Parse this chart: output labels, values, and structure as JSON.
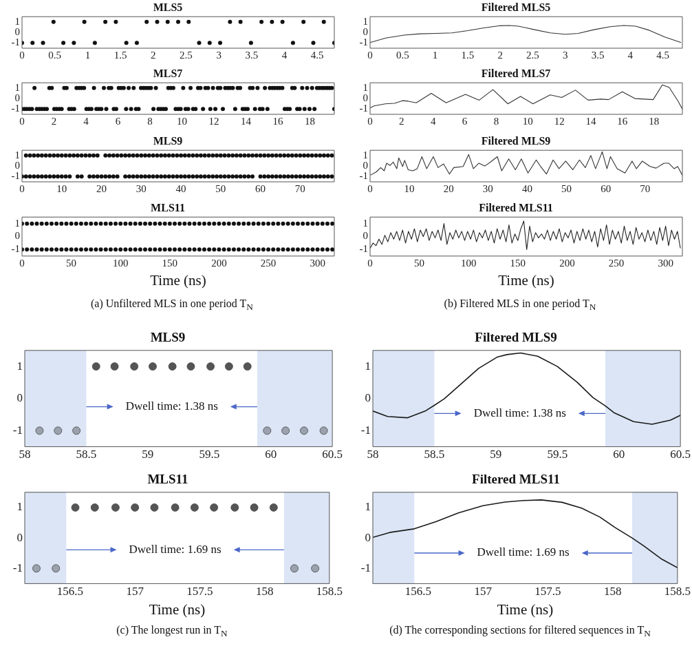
{
  "chart_data": [
    {
      "type": "scatter",
      "title": "MLS5",
      "xlim": [
        0,
        4.76
      ],
      "xticks": [
        0,
        0.5,
        1,
        1.5,
        2,
        2.5,
        3,
        3.5,
        4,
        4.5
      ],
      "ylim": [
        -1.5,
        1.5
      ],
      "yticks": [
        -1,
        0,
        1
      ],
      "marker": "circle",
      "series": [
        {
          "color": "#111111",
          "x": [
            0,
            0.16,
            0.32,
            0.48,
            0.63,
            0.79,
            0.95,
            1.11,
            1.27,
            1.43,
            1.59,
            1.75,
            1.9,
            2.06,
            2.22,
            2.38,
            2.54,
            2.7,
            2.86,
            3.02,
            3.17,
            3.33,
            3.49,
            3.65,
            3.81,
            3.97,
            4.13,
            4.29,
            4.44,
            4.6,
            4.76
          ],
          "values": [
            -1,
            -1,
            -1,
            1,
            -1,
            -1,
            1,
            -1,
            1,
            1,
            -1,
            -1,
            1,
            1,
            1,
            1,
            1,
            -1,
            -1,
            -1,
            1,
            1,
            -1,
            1,
            1,
            1,
            -1,
            1,
            -1,
            1,
            -1
          ]
        }
      ]
    },
    {
      "type": "line",
      "title": "Filtered MLS5",
      "xlim": [
        0,
        4.8
      ],
      "xticks": [
        0,
        0.5,
        1,
        1.5,
        2,
        2.5,
        3,
        3.5,
        4,
        4.5
      ],
      "ylim": [
        -1.5,
        1.5
      ],
      "yticks": [
        -1,
        0,
        1
      ],
      "marker": "none",
      "series": [
        {
          "color": "#333333",
          "x": [
            0,
            0.24,
            0.52,
            0.76,
            1.01,
            1.26,
            1.5,
            1.75,
            2.0,
            2.14,
            2.28,
            2.53,
            2.77,
            3.0,
            3.2,
            3.44,
            3.69,
            3.9,
            4.08,
            4.29,
            4.53,
            4.78
          ],
          "values": [
            -0.96,
            -0.53,
            -0.26,
            -0.13,
            -0.09,
            -0.04,
            0.17,
            0.43,
            0.64,
            0.66,
            0.6,
            0.26,
            -0.04,
            -0.17,
            -0.09,
            0.26,
            0.55,
            0.66,
            0.6,
            0.21,
            -0.43,
            -0.96
          ]
        }
      ]
    },
    {
      "type": "scatter",
      "title": "MLS7",
      "xlim": [
        0,
        19.53
      ],
      "xticks": [
        0,
        2,
        4,
        6,
        8,
        10,
        12,
        14,
        16,
        18
      ],
      "ylim": [
        -1.5,
        1.5
      ],
      "yticks": [
        -1,
        0,
        1
      ],
      "marker": "circle",
      "series": [
        {
          "color": "#111111",
          "x": [
            0,
            0.16,
            0.31,
            0.47,
            0.62,
            0.78,
            0.93,
            1.09,
            1.24,
            1.4,
            1.55,
            1.71,
            1.86,
            2.02,
            2.17,
            2.33,
            2.48,
            2.64,
            2.79,
            2.95,
            3.1,
            3.26,
            3.41,
            3.57,
            3.72,
            3.88,
            4.03,
            4.19,
            4.34,
            4.5,
            4.65,
            4.81,
            4.96,
            5.12,
            5.27,
            5.43,
            5.58,
            5.74,
            5.89,
            6.05,
            6.2,
            6.36,
            6.51,
            6.67,
            6.82,
            6.98,
            7.13,
            7.29,
            7.44,
            7.6,
            7.75,
            7.91,
            8.06,
            8.22,
            8.37,
            8.53,
            8.68,
            8.84,
            8.99,
            9.15,
            9.3,
            9.46,
            9.61,
            9.77,
            9.92,
            10.08,
            10.23,
            10.39,
            10.54,
            10.7,
            10.85,
            11.01,
            11.16,
            11.32,
            11.47,
            11.63,
            11.78,
            11.94,
            12.09,
            12.25,
            12.4,
            12.56,
            12.71,
            12.87,
            13.02,
            13.18,
            13.33,
            13.49,
            13.64,
            13.8,
            13.95,
            14.11,
            14.26,
            14.42,
            14.57,
            14.73,
            14.88,
            15.04,
            15.19,
            15.35,
            15.5,
            15.66,
            15.81,
            15.97,
            16.12,
            16.28,
            16.43,
            16.59,
            16.74,
            16.9,
            17.05,
            17.21,
            17.36,
            17.52,
            17.67,
            17.83,
            17.98,
            18.14,
            18.29,
            18.45,
            18.6,
            18.76,
            18.91,
            19.07,
            19.22,
            19.38,
            19.53
          ],
          "values": [
            -1,
            -1,
            -1,
            -1,
            -1,
            1,
            -1,
            -1,
            -1,
            -1,
            -1,
            1,
            1,
            -1,
            -1,
            -1,
            -1,
            1,
            1,
            -1,
            -1,
            -1,
            1,
            1,
            1,
            1,
            -1,
            -1,
            -1,
            1,
            -1,
            -1,
            -1,
            1,
            -1,
            1,
            1,
            -1,
            -1,
            1,
            1,
            1,
            -1,
            1,
            -1,
            1,
            -1,
            -1,
            1,
            1,
            1,
            1,
            1,
            -1,
            1,
            -1,
            -1,
            -1,
            -1,
            1,
            1,
            1,
            -1,
            -1,
            -1,
            1,
            -1,
            -1,
            1,
            -1,
            -1,
            1,
            1,
            -1,
            1,
            1,
            -1,
            1,
            -1,
            1,
            1,
            -1,
            1,
            1,
            1,
            1,
            -1,
            1,
            1,
            -1,
            -1,
            -1,
            1,
            1,
            -1,
            1,
            -1,
            -1,
            1,
            -1,
            1,
            1,
            1,
            1,
            1,
            1,
            -1,
            -1,
            -1,
            1,
            1,
            -1,
            -1,
            1,
            -1,
            1,
            -1,
            1,
            -1,
            1,
            1,
            1,
            1,
            1,
            1,
            1,
            -1
          ]
        }
      ]
    },
    {
      "type": "line",
      "title": "Filtered MLS7",
      "xlim": [
        0,
        19.8
      ],
      "xticks": [
        0,
        2,
        4,
        6,
        8,
        10,
        12,
        14,
        16,
        18
      ],
      "ylim": [
        -1.5,
        1.5
      ],
      "yticks": [
        -1,
        0,
        1
      ],
      "marker": "none",
      "series": [
        {
          "color": "#333333",
          "x": [
            0,
            0.25,
            0.97,
            1.55,
            2.06,
            2.42,
            2.93,
            3.88,
            4.82,
            6.05,
            6.92,
            7.79,
            8.74,
            9.54,
            10.33,
            11.42,
            12.15,
            13.02,
            13.82,
            14.62,
            15.12,
            15.99,
            16.79,
            17.95,
            18.53,
            18.97,
            19.55,
            19.8
          ],
          "values": [
            -0.9,
            -0.7,
            -0.5,
            -0.45,
            -0.2,
            -0.25,
            -0.4,
            0.5,
            -0.4,
            0.4,
            -0.15,
            0.85,
            -0.5,
            0.2,
            -0.5,
            0.35,
            0.1,
            0.8,
            -0.15,
            -0.05,
            -0.1,
            0.65,
            0,
            -0.1,
            1.3,
            1.05,
            -0.3,
            -1
          ]
        }
      ]
    },
    {
      "type": "scatter",
      "title": "MLS9",
      "xlim": [
        0,
        78.6
      ],
      "xticks": [
        0,
        10,
        20,
        30,
        40,
        50,
        60,
        70
      ],
      "ylim": [
        -1.5,
        1.5
      ],
      "yticks": [
        -1,
        0,
        1
      ],
      "marker": "circle",
      "series": [
        {
          "color": "#111111",
          "x": [
            1,
            2,
            3,
            4,
            5,
            6,
            7,
            8,
            9,
            10,
            11,
            12,
            13,
            14,
            15,
            16,
            17,
            18,
            19,
            21,
            22,
            23,
            24,
            25,
            26,
            27,
            28,
            29,
            30,
            31,
            32,
            33,
            34,
            35,
            36,
            37,
            38,
            39,
            40,
            41,
            42,
            43,
            44,
            45,
            46,
            47,
            48,
            49,
            50,
            51,
            52,
            53,
            54,
            55,
            56,
            57,
            58,
            59,
            60,
            61,
            62,
            63,
            64,
            65,
            66,
            67,
            68,
            69,
            70,
            71,
            72,
            73,
            74,
            75,
            76,
            77,
            78
          ],
          "values": [
            1,
            1,
            1,
            1,
            1,
            1,
            1,
            1,
            1,
            1,
            1,
            1,
            1,
            1,
            1,
            1,
            1,
            1,
            1,
            1,
            1,
            1,
            1,
            1,
            1,
            1,
            1,
            1,
            1,
            1,
            1,
            1,
            1,
            1,
            1,
            1,
            1,
            1,
            1,
            1,
            1,
            1,
            1,
            1,
            1,
            1,
            1,
            1,
            1,
            1,
            1,
            1,
            1,
            1,
            1,
            1,
            1,
            1,
            1,
            1,
            1,
            1,
            1,
            1,
            1,
            1,
            1,
            1,
            1,
            1,
            1,
            1,
            1,
            1,
            1,
            1,
            1
          ]
        },
        {
          "color": "#111111",
          "x": [
            0,
            1,
            2,
            3,
            4,
            5,
            6,
            7,
            8,
            9,
            10,
            11,
            12,
            14,
            15,
            17,
            18,
            19,
            20,
            21,
            22,
            23,
            24,
            26,
            27,
            28,
            29,
            30,
            31,
            32,
            33,
            34,
            35,
            36,
            37,
            38,
            39,
            40,
            41,
            42,
            43,
            44,
            45,
            46,
            47,
            48,
            49,
            50,
            51,
            52,
            53,
            54,
            55,
            56,
            57,
            58,
            60,
            61,
            62,
            63,
            64,
            65,
            66,
            67,
            68,
            69,
            70,
            71,
            72,
            73,
            74,
            75,
            76,
            77,
            78
          ],
          "values": [
            -1,
            -1,
            -1,
            -1,
            -1,
            -1,
            -1,
            -1,
            -1,
            -1,
            -1,
            -1,
            -1,
            -1,
            -1,
            -1,
            -1,
            -1,
            -1,
            -1,
            -1,
            -1,
            -1,
            -1,
            -1,
            -1,
            -1,
            -1,
            -1,
            -1,
            -1,
            -1,
            -1,
            -1,
            -1,
            -1,
            -1,
            -1,
            -1,
            -1,
            -1,
            -1,
            -1,
            -1,
            -1,
            -1,
            -1,
            -1,
            -1,
            -1,
            -1,
            -1,
            -1,
            -1,
            -1,
            -1,
            -1,
            -1,
            -1,
            -1,
            -1,
            -1,
            -1,
            -1,
            -1,
            -1,
            -1,
            -1,
            -1,
            -1,
            -1,
            -1,
            -1,
            -1,
            -1
          ]
        }
      ]
    },
    {
      "type": "line",
      "title": "Filtered MLS9",
      "xlim": [
        0,
        79.5
      ],
      "xticks": [
        0,
        10,
        20,
        30,
        40,
        50,
        60,
        70
      ],
      "ylim": [
        -1.5,
        1.5
      ],
      "yticks": [
        -1,
        0,
        1
      ],
      "marker": "none",
      "series": [
        {
          "color": "#333333",
          "x": [
            0.1,
            1.6,
            2.7,
            3.6,
            4.2,
            5.1,
            5.9,
            6.8,
            7.3,
            8.3,
            8.8,
            9.7,
            10.9,
            12.0,
            13.2,
            14.4,
            16.1,
            17.3,
            18.7,
            20.2,
            21.3,
            23.7,
            25.1,
            26.3,
            27.7,
            29.2,
            30.6,
            32.4,
            33.5,
            35.3,
            37.0,
            38.5,
            40.2,
            42.3,
            43.4,
            44.9,
            46.6,
            48.1,
            49.8,
            51.6,
            53.3,
            54.8,
            56.2,
            57.4,
            59.1,
            60.3,
            61.2,
            62.9,
            64.9,
            66.7,
            67.8,
            69.3,
            71.3,
            72.8,
            74.8,
            76.0,
            77.4,
            78.3,
            79.5
          ],
          "values": [
            -0.87,
            -0.55,
            -0.15,
            -0.45,
            0.27,
            0.06,
            0.37,
            -0.25,
            0.78,
            -0.04,
            0.54,
            -0.35,
            -0.45,
            -0.25,
            0.89,
            -0.25,
            0.89,
            -0.15,
            0.2,
            -0.76,
            -0.15,
            -0.04,
            1.1,
            -0.25,
            0.27,
            0,
            0.37,
            0.89,
            -0.45,
            0.68,
            -0.35,
            0.68,
            -0.66,
            0.58,
            -0.04,
            -0.76,
            0.58,
            -0.25,
            0.47,
            -0.35,
            0.58,
            -0.15,
            1.0,
            -0.25,
            1.36,
            -0.25,
            0.89,
            -0.25,
            -0.66,
            0.47,
            -0.25,
            0.47,
            -0.04,
            -0.2,
            0.27,
            0.27,
            -0.25,
            -0.04,
            -0.87
          ]
        }
      ]
    },
    {
      "type": "scatter",
      "title": "MLS11",
      "xlabel": "Time (ns)",
      "annotations": [
        "(a)  Unfiltered MLS in one period T$_{N}$"
      ],
      "xlim": [
        0,
        317
      ],
      "xticks": [
        0,
        50,
        100,
        150,
        200,
        250,
        300
      ],
      "ylim": [
        -1.5,
        1.5
      ],
      "yticks": [
        -1,
        0,
        1
      ],
      "marker": "circle",
      "series": [
        {
          "color": "#111111",
          "x": [
            0,
            5,
            10,
            15,
            20,
            25,
            30,
            35,
            40,
            45,
            50,
            55,
            60,
            65,
            70,
            75,
            80,
            85,
            90,
            95,
            100,
            105,
            110,
            115,
            120,
            125,
            130,
            135,
            140,
            145,
            150,
            155,
            160,
            165,
            170,
            175,
            180,
            185,
            190,
            195,
            200,
            205,
            210,
            215,
            220,
            225,
            230,
            235,
            240,
            245,
            250,
            255,
            260,
            265,
            270,
            275,
            280,
            285,
            290,
            295,
            300,
            305,
            310,
            315
          ],
          "values": [
            1,
            1,
            1,
            1,
            1,
            1,
            1,
            1,
            1,
            1,
            1,
            1,
            1,
            1,
            1,
            1,
            1,
            1,
            1,
            1,
            1,
            1,
            1,
            1,
            1,
            1,
            1,
            1,
            1,
            1,
            1,
            1,
            1,
            1,
            1,
            1,
            1,
            1,
            1,
            1,
            1,
            1,
            1,
            1,
            1,
            1,
            1,
            1,
            1,
            1,
            1,
            1,
            1,
            1,
            1,
            1,
            1,
            1,
            1,
            1,
            1,
            1,
            1,
            1
          ]
        },
        {
          "color": "#111111",
          "x": [
            0,
            5,
            10,
            15,
            20,
            25,
            30,
            35,
            40,
            45,
            50,
            55,
            60,
            65,
            70,
            75,
            80,
            85,
            90,
            95,
            100,
            105,
            110,
            115,
            120,
            125,
            130,
            135,
            140,
            145,
            150,
            155,
            160,
            165,
            170,
            175,
            180,
            185,
            190,
            195,
            200,
            205,
            210,
            215,
            220,
            225,
            230,
            235,
            240,
            245,
            250,
            255,
            260,
            265,
            270,
            275,
            280,
            285,
            290,
            295,
            300,
            305,
            310,
            315
          ],
          "values": [
            -1,
            -1,
            -1,
            -1,
            -1,
            -1,
            -1,
            -1,
            -1,
            -1,
            -1,
            -1,
            -1,
            -1,
            -1,
            -1,
            -1,
            -1,
            -1,
            -1,
            -1,
            -1,
            -1,
            -1,
            -1,
            -1,
            -1,
            -1,
            -1,
            -1,
            -1,
            -1,
            -1,
            -1,
            -1,
            -1,
            -1,
            -1,
            -1,
            -1,
            -1,
            -1,
            -1,
            -1,
            -1,
            -1,
            -1,
            -1,
            -1,
            -1,
            -1,
            -1,
            -1,
            -1,
            -1,
            -1,
            -1,
            -1,
            -1,
            -1,
            -1,
            -1,
            -1,
            -1
          ]
        }
      ]
    },
    {
      "type": "line",
      "title": "Filtered MLS11",
      "xlabel": "Time (ns)",
      "annotations": [
        "(b)  Filtered MLS in one period T$_{N}$"
      ],
      "xlim": [
        0,
        317
      ],
      "xticks": [
        0,
        50,
        100,
        150,
        200,
        250,
        300
      ],
      "ylim": [
        -1.5,
        1.5
      ],
      "yticks": [
        -1,
        0,
        1
      ],
      "marker": "none",
      "series": [
        {
          "color": "#222222",
          "x": [
            0,
            3,
            6,
            9,
            12,
            15,
            18,
            21,
            24,
            27,
            30,
            33,
            36,
            39,
            42,
            45,
            48,
            51,
            54,
            57,
            60,
            63,
            66,
            69,
            72,
            75,
            78,
            81,
            84,
            87,
            90,
            93,
            96,
            99,
            102,
            105,
            108,
            111,
            114,
            117,
            120,
            123,
            126,
            129,
            132,
            135,
            138,
            141,
            144,
            147,
            150,
            153,
            156,
            159,
            162,
            165,
            168,
            171,
            174,
            177,
            180,
            183,
            186,
            189,
            192,
            195,
            198,
            201,
            204,
            207,
            210,
            213,
            216,
            219,
            222,
            225,
            228,
            231,
            234,
            237,
            240,
            243,
            246,
            249,
            252,
            255,
            258,
            261,
            264,
            267,
            270,
            273,
            276,
            279,
            282,
            285,
            288,
            291,
            294,
            297,
            300,
            303,
            306,
            309,
            312,
            315
          ],
          "values": [
            -0.9,
            -0.5,
            -0.7,
            -0.2,
            -0.6,
            0.1,
            -0.4,
            0.3,
            -0.2,
            0.4,
            -0.3,
            0.5,
            -0.5,
            0.4,
            -0.2,
            0.6,
            -0.4,
            0.5,
            0,
            0.6,
            -0.3,
            0.4,
            -0.1,
            0.5,
            -0.3,
            1.0,
            -0.6,
            0.3,
            -0.2,
            0.5,
            -0.1,
            0.4,
            -0.3,
            0.4,
            -0.2,
            0.5,
            -0.4,
            0.3,
            -0.1,
            0.5,
            -0.3,
            0.4,
            -0.5,
            0.6,
            -0.2,
            0.5,
            -0.4,
            0.9,
            -0.5,
            0.2,
            -0.3,
            0.6,
            1.2,
            -1.0,
            0.8,
            -0.4,
            0.3,
            -0.1,
            0.2,
            -0.2,
            0.5,
            -0.3,
            0.4,
            -0.2,
            0.6,
            -0.4,
            0.3,
            -0.1,
            0.5,
            -0.5,
            0.4,
            -0.3,
            0.6,
            -0.2,
            0.5,
            -0.4,
            0.4,
            -0.8,
            0.6,
            -0.3,
            0.9,
            -0.6,
            0.5,
            -0.2,
            0.4,
            -0.5,
            0.8,
            -0.3,
            0.4,
            -0.6,
            0.7,
            -0.2,
            0.3,
            -0.4,
            0.5,
            -0.3,
            0.4,
            -0.6,
            0.7,
            -0.3,
            0.8,
            -0.7,
            0.5,
            -0.2,
            0.4,
            -0.9
          ]
        }
      ]
    },
    {
      "type": "scatter",
      "title": "MLS9",
      "xlim": [
        58,
        60.5
      ],
      "xticks": [
        58,
        58.5,
        59,
        59.5,
        60,
        60.5
      ],
      "ylim": [
        -1.5,
        1.5
      ],
      "yticks": [
        -1,
        0,
        1
      ],
      "marker": "circle",
      "bands": [
        {
          "axis": "x",
          "from": 58,
          "to": 58.5,
          "color": "#dbe5f5"
        },
        {
          "axis": "x",
          "from": 59.89,
          "to": 60.5,
          "color": "#dbe5f5"
        }
      ],
      "annotations": [
        "Dwell time: 1.38 ns"
      ],
      "series": [
        {
          "color": "#555555",
          "x": [
            58.12,
            58.27,
            58.42,
            58.58,
            58.73,
            58.89,
            59.04,
            59.2,
            59.35,
            59.51,
            59.66,
            59.81,
            59.97,
            60.12,
            60.27,
            60.43
          ],
          "values": [
            -1,
            -1,
            -1,
            1,
            1,
            1,
            1,
            1,
            1,
            1,
            1,
            1,
            -1,
            -1,
            -1,
            -1
          ],
          "colors": [
            "#9ba2ae",
            "#9ba2ae",
            "#9ba2ae",
            "#555555",
            "#555555",
            "#555555",
            "#555555",
            "#555555",
            "#555555",
            "#555555",
            "#555555",
            "#555555",
            "#9ba2ae",
            "#9ba2ae",
            "#9ba2ae",
            "#9ba2ae"
          ]
        }
      ]
    },
    {
      "type": "line",
      "title": "Filtered MLS9",
      "xlim": [
        58,
        60.5
      ],
      "xticks": [
        58,
        58.5,
        59,
        59.5,
        60,
        60.5
      ],
      "ylim": [
        -1.5,
        1.5
      ],
      "yticks": [
        -1,
        0,
        1
      ],
      "marker": "none",
      "bands": [
        {
          "axis": "x",
          "from": 58,
          "to": 58.5,
          "color": "#dbe5f5"
        },
        {
          "axis": "x",
          "from": 59.89,
          "to": 60.5,
          "color": "#dbe5f5"
        }
      ],
      "annotations": [
        "Dwell time: 1.38 ns"
      ],
      "series": [
        {
          "color": "#1a1a1a",
          "x": [
            58,
            58.12,
            58.28,
            58.43,
            58.5,
            58.58,
            58.71,
            58.86,
            59.01,
            59.09,
            59.2,
            59.34,
            59.5,
            59.66,
            59.79,
            59.89,
            59.96,
            60.12,
            60.27,
            60.42,
            60.5
          ],
          "values": [
            -0.39,
            -0.56,
            -0.6,
            -0.38,
            -0.21,
            -0.01,
            0.43,
            0.94,
            1.29,
            1.37,
            1.42,
            1.32,
            1.0,
            0.51,
            0.03,
            -0.23,
            -0.44,
            -0.72,
            -0.8,
            -0.67,
            -0.52
          ]
        }
      ]
    },
    {
      "type": "scatter",
      "title": "MLS11",
      "xlabel": "Time (ns)",
      "annotations": [
        "Dwell time: 1.69 ns",
        "(c)  The longest run in T$_{N}$"
      ],
      "xlim": [
        156.15,
        158.5
      ],
      "xticks": [
        156.5,
        157,
        157.5,
        158,
        158.5
      ],
      "ylim": [
        -1.5,
        1.5
      ],
      "yticks": [
        -1,
        0,
        1
      ],
      "marker": "circle",
      "bands": [
        {
          "axis": "x",
          "from": 156.15,
          "to": 156.47,
          "color": "#dbe5f5"
        },
        {
          "axis": "x",
          "from": 158.15,
          "to": 158.5,
          "color": "#dbe5f5"
        }
      ],
      "series": [
        {
          "color": "#555555",
          "x": [
            156.24,
            156.39,
            156.54,
            156.69,
            156.85,
            157.0,
            157.15,
            157.31,
            157.46,
            157.61,
            157.77,
            157.92,
            158.07,
            158.23,
            158.39
          ],
          "values": [
            -1,
            -1,
            1,
            1,
            1,
            1,
            1,
            1,
            1,
            1,
            1,
            1,
            1,
            -1,
            -1
          ],
          "colors": [
            "#9ba2ae",
            "#9ba2ae",
            "#555555",
            "#555555",
            "#555555",
            "#555555",
            "#555555",
            "#555555",
            "#555555",
            "#555555",
            "#555555",
            "#555555",
            "#555555",
            "#9ba2ae",
            "#9ba2ae"
          ]
        }
      ]
    },
    {
      "type": "line",
      "title": "Filtered MLS11",
      "xlabel": "Time (ns)",
      "annotations": [
        "Dwell time: 1.69 ns",
        "(d)  The corresponding sections for filtered sequences in T$_{N}$"
      ],
      "xlim": [
        156.15,
        158.5
      ],
      "xticks": [
        156.5,
        157,
        157.5,
        158,
        158.5
      ],
      "ylim": [
        -1.5,
        1.5
      ],
      "yticks": [
        -1,
        0,
        1
      ],
      "marker": "none",
      "bands": [
        {
          "axis": "x",
          "from": 156.15,
          "to": 156.47,
          "color": "#dbe5f5"
        },
        {
          "axis": "x",
          "from": 158.15,
          "to": 158.5,
          "color": "#dbe5f5"
        }
      ],
      "series": [
        {
          "color": "#1a1a1a",
          "x": [
            156.15,
            156.28,
            156.47,
            156.64,
            156.81,
            157.0,
            157.17,
            157.31,
            157.45,
            157.61,
            157.76,
            157.9,
            158.02,
            158.15,
            158.24,
            158.38,
            158.5
          ],
          "values": [
            0.02,
            0.18,
            0.3,
            0.54,
            0.82,
            1.06,
            1.18,
            1.23,
            1.25,
            1.17,
            0.98,
            0.69,
            0.34,
            0,
            -0.26,
            -0.7,
            -0.98
          ]
        }
      ]
    }
  ]
}
